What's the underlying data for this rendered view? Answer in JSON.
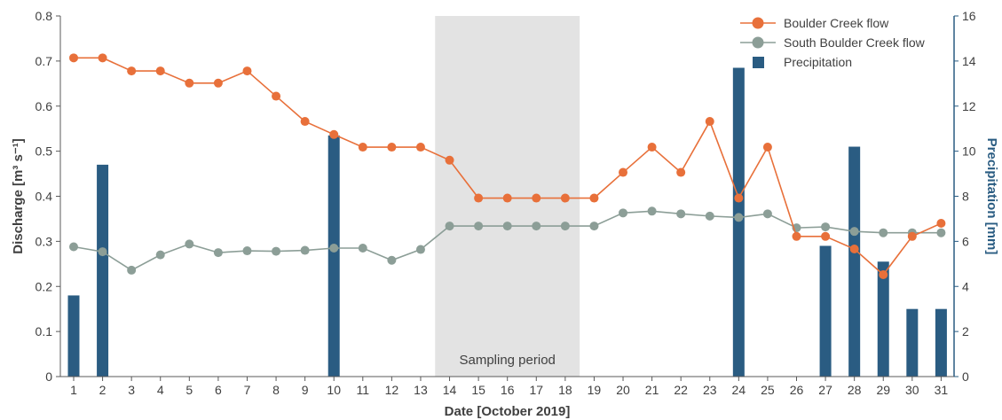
{
  "chart_data": {
    "type": "line",
    "xlabel": "Date [October 2019]",
    "ylabel_left": "Discharge [m³ s⁻¹]",
    "ylabel_right": "Precipitation [mm]",
    "x": [
      "1",
      "2",
      "3",
      "4",
      "5",
      "6",
      "7",
      "8",
      "9",
      "10",
      "11",
      "12",
      "13",
      "14",
      "15",
      "16",
      "17",
      "18",
      "19",
      "20",
      "21",
      "22",
      "23",
      "24",
      "25",
      "26",
      "27",
      "28",
      "29",
      "30",
      "31"
    ],
    "ylim_left": [
      0,
      0.8
    ],
    "yticks_left": [
      "0",
      "0.1",
      "0.2",
      "0.3",
      "0.4",
      "0.5",
      "0.6",
      "0.7",
      "0.8"
    ],
    "ylim_right": [
      0,
      16
    ],
    "yticks_right": [
      "0",
      "2",
      "4",
      "6",
      "8",
      "10",
      "12",
      "14",
      "16"
    ],
    "series": [
      {
        "name": "Boulder Creek flow",
        "kind": "line",
        "axis": "left",
        "color": "#E8703A",
        "values": [
          0.707,
          0.707,
          0.678,
          0.678,
          0.651,
          0.651,
          0.678,
          0.622,
          0.566,
          0.537,
          0.509,
          0.509,
          0.509,
          0.48,
          0.396,
          0.396,
          0.396,
          0.396,
          0.396,
          0.453,
          0.509,
          0.453,
          0.566,
          0.396,
          0.509,
          0.311,
          0.311,
          0.283,
          0.226,
          0.311,
          0.34
        ]
      },
      {
        "name": "South Boulder Creek flow",
        "kind": "line",
        "axis": "left",
        "color": "#8C9E97",
        "values": [
          0.288,
          0.277,
          0.236,
          0.27,
          0.294,
          0.275,
          0.279,
          0.278,
          0.28,
          0.285,
          0.285,
          0.258,
          0.282,
          0.334,
          0.334,
          0.334,
          0.334,
          0.334,
          0.334,
          0.363,
          0.367,
          0.361,
          0.356,
          0.353,
          0.361,
          0.33,
          0.332,
          0.322,
          0.319,
          0.319,
          0.319
        ]
      },
      {
        "name": "Precipitation",
        "kind": "bar",
        "axis": "right",
        "color": "#2A5C82",
        "values": [
          3.6,
          9.4,
          0,
          0,
          0,
          0,
          0,
          0,
          0,
          10.7,
          0,
          0,
          0,
          0,
          0,
          0,
          0,
          0,
          0,
          0,
          0,
          0,
          0,
          13.7,
          0,
          0,
          5.8,
          10.2,
          5.1,
          3.0,
          3.0
        ]
      }
    ],
    "shaded_region": {
      "from": "14",
      "to": "18",
      "label": "Sampling period",
      "color": "#E3E3E3"
    },
    "legend": {
      "placement": "top-right"
    },
    "grid": false,
    "colors": {
      "left_axis": "#595959",
      "right_axis": "#2A5C82"
    }
  }
}
